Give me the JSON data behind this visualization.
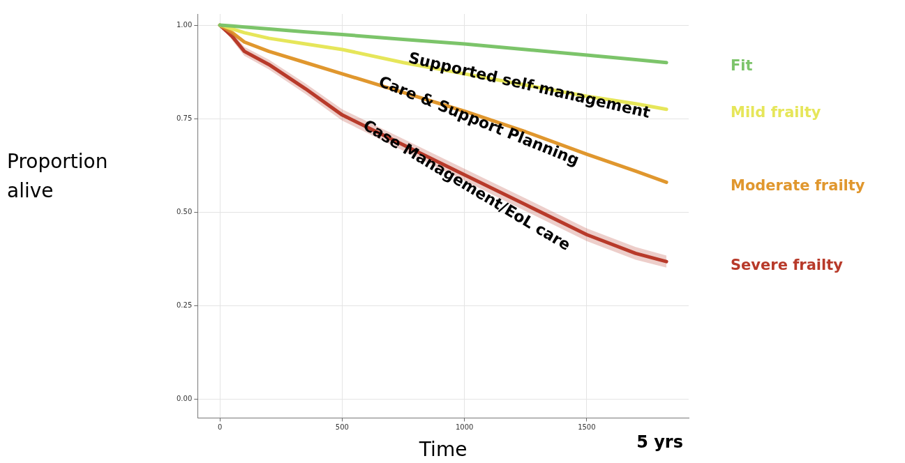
{
  "chart_data": {
    "type": "line",
    "xlabel": "Time",
    "ylabel": "Proportion alive",
    "xlim": [
      -91,
      1917
    ],
    "xticks": [
      0,
      500,
      1000,
      1500
    ],
    "ylim": [
      -0.05,
      1.03
    ],
    "yticks": [
      {
        "value": 0,
        "label": "0.00"
      },
      {
        "value": 0.25,
        "label": "0.25"
      },
      {
        "value": 0.5,
        "label": "0.50"
      },
      {
        "value": 0.75,
        "label": "0.75"
      },
      {
        "value": 1,
        "label": "1.00"
      }
    ],
    "grid": true,
    "marker": "none",
    "line_style": "solid",
    "x": [
      0,
      50,
      100,
      200,
      350,
      500,
      750,
      1000,
      1250,
      1500,
      1700,
      1826
    ],
    "series": [
      {
        "name": "Fit",
        "color": "#7cc46a",
        "values": [
          1,
          0.998,
          0.995,
          0.99,
          0.982,
          0.975,
          0.962,
          0.95,
          0.935,
          0.92,
          0.908,
          0.9
        ]
      },
      {
        "name": "Mild frailty",
        "color": "#e6e65a",
        "values": [
          1,
          0.99,
          0.98,
          0.965,
          0.95,
          0.935,
          0.9,
          0.87,
          0.84,
          0.81,
          0.79,
          0.775
        ]
      },
      {
        "name": "Moderate frailty",
        "color": "#e0972e",
        "values": [
          1,
          0.98,
          0.955,
          0.93,
          0.9,
          0.87,
          0.82,
          0.77,
          0.715,
          0.655,
          0.61,
          0.58
        ]
      },
      {
        "name": "Severe frailty",
        "color": "#b83a2a",
        "values": [
          1,
          0.97,
          0.93,
          0.895,
          0.83,
          0.76,
          0.68,
          0.6,
          0.52,
          0.44,
          0.39,
          0.368
        ],
        "lower": [
          1,
          0.96,
          0.918,
          0.882,
          0.816,
          0.745,
          0.664,
          0.584,
          0.503,
          0.423,
          0.373,
          0.352
        ],
        "upper": [
          1,
          0.98,
          0.942,
          0.908,
          0.844,
          0.775,
          0.696,
          0.616,
          0.537,
          0.457,
          0.407,
          0.384
        ]
      }
    ],
    "annotations": [
      "Supported self-management",
      "Care & Support Planning",
      "Case Management/EoL care",
      "5 yrs"
    ]
  }
}
